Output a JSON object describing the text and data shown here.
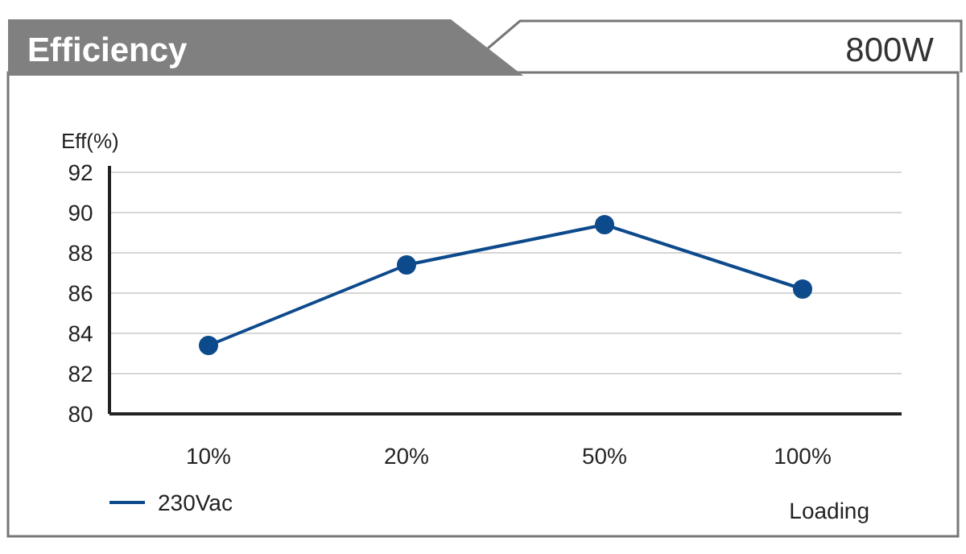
{
  "chart_data": {
    "type": "line",
    "title": "Efficiency",
    "subtitle": "800W",
    "ylabel": "Eff(%)",
    "xlabel": "Loading",
    "categories": [
      "10%",
      "20%",
      "50%",
      "100%"
    ],
    "series": [
      {
        "name": "230Vac",
        "color": "#0d4a8c",
        "values": [
          83.4,
          87.4,
          89.4,
          86.2
        ]
      }
    ],
    "ylim": [
      80,
      92
    ],
    "yticks": [
      80,
      82,
      84,
      86,
      88,
      90,
      92
    ],
    "grid": "y",
    "legend": "bottom left",
    "marker": "circle",
    "line_style": "solid"
  }
}
